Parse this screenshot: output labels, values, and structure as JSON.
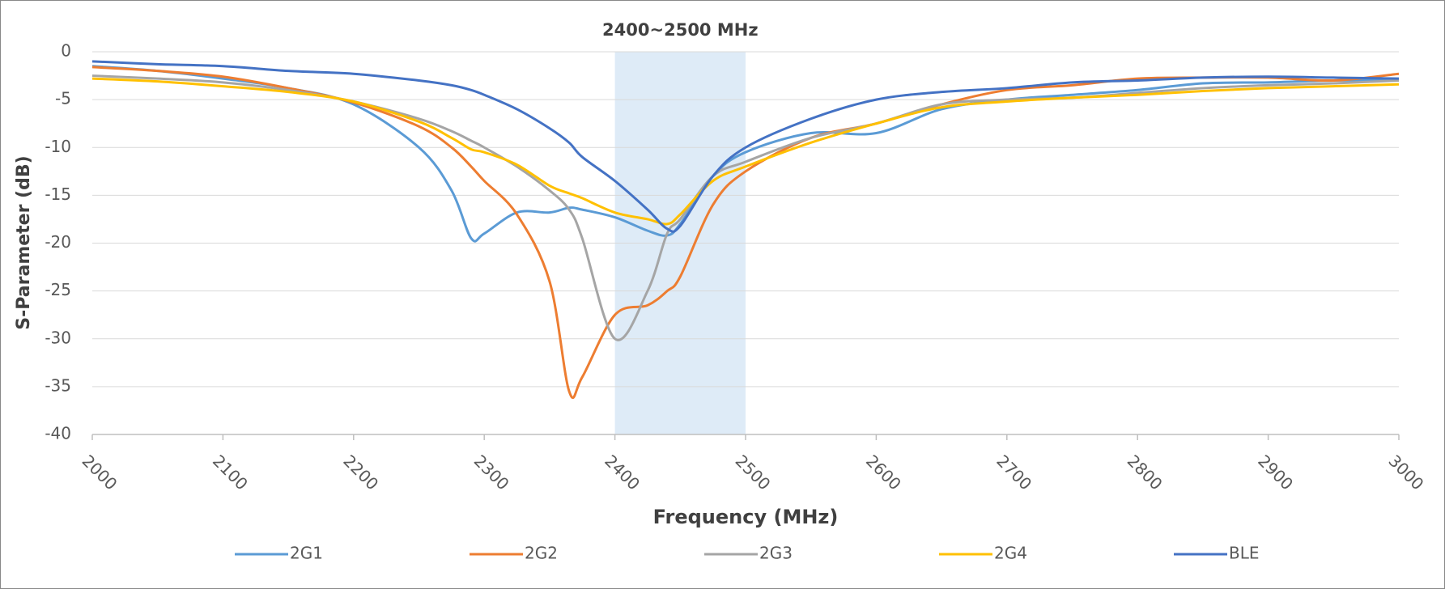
{
  "chart_data": {
    "type": "line",
    "xlabel": "Frequency (MHz)",
    "ylabel": "S-Parameter (dB)",
    "annotation": {
      "text": "2400~2500 MHz",
      "range": [
        2400,
        2500
      ],
      "color": "#deebf7"
    },
    "x": [
      2000,
      2050,
      2100,
      2150,
      2200,
      2250,
      2275,
      2290,
      2300,
      2325,
      2350,
      2365,
      2375,
      2400,
      2425,
      2440,
      2450,
      2475,
      2500,
      2550,
      2600,
      2650,
      2700,
      2750,
      2800,
      2850,
      2900,
      2950,
      3000
    ],
    "series": [
      {
        "name": "2G1",
        "color": "#5b9bd5",
        "values": [
          -1.5,
          -2,
          -2.8,
          -3.8,
          -5.5,
          -10,
          -14.5,
          -19.5,
          -19,
          -16.8,
          -16.8,
          -16.3,
          -16.5,
          -17.3,
          -18.7,
          -19.2,
          -18,
          -13,
          -10.5,
          -8.5,
          -8.5,
          -6,
          -5,
          -4.5,
          -4,
          -3.3,
          -3.2,
          -3,
          -3
        ]
      },
      {
        "name": "2G2",
        "color": "#ed7d31",
        "values": [
          -1.6,
          -2,
          -2.6,
          -3.8,
          -5.3,
          -7.8,
          -10,
          -12,
          -13.5,
          -17,
          -24,
          -35.5,
          -34,
          -27.5,
          -26.5,
          -25,
          -23.5,
          -16,
          -12.5,
          -9,
          -7.5,
          -5.5,
          -4,
          -3.5,
          -2.8,
          -2.7,
          -2.7,
          -3,
          -2.3
        ]
      },
      {
        "name": "2G3",
        "color": "#a5a5a5",
        "values": [
          -2.5,
          -2.8,
          -3.2,
          -4,
          -5.2,
          -7,
          -8.3,
          -9.3,
          -10,
          -12,
          -14.5,
          -16.5,
          -19.5,
          -30,
          -25,
          -19,
          -17.5,
          -13,
          -11.5,
          -9,
          -7.5,
          -5.5,
          -5,
          -4.8,
          -4.3,
          -3.8,
          -3.5,
          -3.3,
          -3
        ]
      },
      {
        "name": "2G4",
        "color": "#ffc000",
        "values": [
          -2.8,
          -3.1,
          -3.6,
          -4.2,
          -5.2,
          -7.3,
          -9,
          -10.2,
          -10.5,
          -11.8,
          -14,
          -14.8,
          -15.3,
          -16.8,
          -17.5,
          -18,
          -17,
          -13.5,
          -12,
          -9.5,
          -7.5,
          -5.8,
          -5.2,
          -4.8,
          -4.5,
          -4.1,
          -3.8,
          -3.6,
          -3.4
        ]
      },
      {
        "name": "BLE",
        "color": "#4472c4",
        "values": [
          -1,
          -1.3,
          -1.5,
          -2,
          -2.3,
          -3,
          -3.5,
          -4,
          -4.5,
          -6,
          -8,
          -9.5,
          -11,
          -13.5,
          -16.5,
          -18.5,
          -18.2,
          -13,
          -10,
          -7,
          -5,
          -4.2,
          -3.8,
          -3.2,
          -3,
          -2.7,
          -2.6,
          -2.7,
          -2.8
        ]
      }
    ],
    "xlim": [
      2000,
      3000
    ],
    "xticks": [
      2000,
      2100,
      2200,
      2300,
      2400,
      2500,
      2600,
      2700,
      2800,
      2900,
      3000
    ],
    "ylim": [
      -40,
      0
    ],
    "yticks": [
      -40,
      -35,
      -30,
      -25,
      -20,
      -15,
      -10,
      -5,
      0
    ],
    "grid": true,
    "legend": "bottom"
  }
}
